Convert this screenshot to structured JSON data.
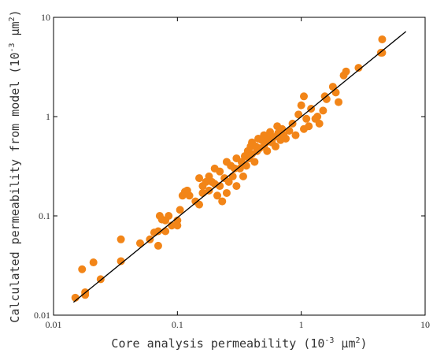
{
  "chart_data": {
    "type": "scatter",
    "title": "",
    "xlabel": "Core analysis permeability (10",
    "xlabel_exp": "-3",
    "xlabel_unit": " μm",
    "xlabel_unit_exp": "2",
    "xlabel_close": ")",
    "ylabel": "Calculated permeability from model (10",
    "ylabel_exp": "-3",
    "ylabel_unit": " μm",
    "ylabel_unit_exp": "2",
    "ylabel_close": ")",
    "x_scale": "log",
    "y_scale": "log",
    "xlim": [
      0.01,
      10
    ],
    "ylim": [
      0.01,
      10
    ],
    "x_ticks": [
      0.01,
      0.1,
      1,
      10
    ],
    "x_tick_labels": [
      "0.01",
      "0.1",
      "1",
      "10"
    ],
    "y_ticks": [
      0.01,
      0.1,
      1,
      10
    ],
    "y_tick_labels": [
      "0.01",
      "0.1",
      "1",
      "10"
    ],
    "grid": false,
    "point_color": "#F28518",
    "line_color": "#000000",
    "fit_line": {
      "x": [
        0.0145,
        7.0
      ],
      "y": [
        0.0135,
        7.2
      ]
    },
    "points": [
      [
        0.015,
        0.015
      ],
      [
        0.017,
        0.029
      ],
      [
        0.018,
        0.016
      ],
      [
        0.018,
        0.017
      ],
      [
        0.021,
        0.034
      ],
      [
        0.024,
        0.023
      ],
      [
        0.035,
        0.035
      ],
      [
        0.035,
        0.058
      ],
      [
        0.05,
        0.053
      ],
      [
        0.06,
        0.058
      ],
      [
        0.065,
        0.068
      ],
      [
        0.07,
        0.05
      ],
      [
        0.07,
        0.07
      ],
      [
        0.072,
        0.1
      ],
      [
        0.075,
        0.092
      ],
      [
        0.08,
        0.09
      ],
      [
        0.08,
        0.07
      ],
      [
        0.085,
        0.1
      ],
      [
        0.09,
        0.08
      ],
      [
        0.1,
        0.09
      ],
      [
        0.1,
        0.08
      ],
      [
        0.105,
        0.115
      ],
      [
        0.11,
        0.16
      ],
      [
        0.115,
        0.175
      ],
      [
        0.12,
        0.18
      ],
      [
        0.12,
        0.17
      ],
      [
        0.125,
        0.16
      ],
      [
        0.14,
        0.14
      ],
      [
        0.15,
        0.13
      ],
      [
        0.15,
        0.24
      ],
      [
        0.16,
        0.2
      ],
      [
        0.16,
        0.17
      ],
      [
        0.17,
        0.22
      ],
      [
        0.18,
        0.18
      ],
      [
        0.18,
        0.25
      ],
      [
        0.19,
        0.22
      ],
      [
        0.2,
        0.3
      ],
      [
        0.2,
        0.21
      ],
      [
        0.21,
        0.16
      ],
      [
        0.22,
        0.28
      ],
      [
        0.22,
        0.2
      ],
      [
        0.23,
        0.14
      ],
      [
        0.24,
        0.24
      ],
      [
        0.25,
        0.17
      ],
      [
        0.25,
        0.35
      ],
      [
        0.26,
        0.22
      ],
      [
        0.27,
        0.32
      ],
      [
        0.28,
        0.25
      ],
      [
        0.29,
        0.3
      ],
      [
        0.3,
        0.2
      ],
      [
        0.3,
        0.38
      ],
      [
        0.32,
        0.3
      ],
      [
        0.33,
        0.35
      ],
      [
        0.34,
        0.25
      ],
      [
        0.35,
        0.4
      ],
      [
        0.36,
        0.32
      ],
      [
        0.37,
        0.45
      ],
      [
        0.38,
        0.38
      ],
      [
        0.39,
        0.5
      ],
      [
        0.4,
        0.42
      ],
      [
        0.4,
        0.55
      ],
      [
        0.42,
        0.35
      ],
      [
        0.43,
        0.5
      ],
      [
        0.44,
        0.45
      ],
      [
        0.45,
        0.6
      ],
      [
        0.46,
        0.48
      ],
      [
        0.48,
        0.58
      ],
      [
        0.5,
        0.5
      ],
      [
        0.5,
        0.65
      ],
      [
        0.52,
        0.55
      ],
      [
        0.53,
        0.45
      ],
      [
        0.55,
        0.6
      ],
      [
        0.56,
        0.7
      ],
      [
        0.58,
        0.55
      ],
      [
        0.6,
        0.62
      ],
      [
        0.62,
        0.5
      ],
      [
        0.64,
        0.8
      ],
      [
        0.65,
        0.68
      ],
      [
        0.68,
        0.58
      ],
      [
        0.7,
        0.75
      ],
      [
        0.72,
        0.65
      ],
      [
        0.75,
        0.6
      ],
      [
        0.8,
        0.72
      ],
      [
        0.85,
        0.85
      ],
      [
        0.9,
        0.65
      ],
      [
        0.95,
        1.05
      ],
      [
        1.0,
        1.3
      ],
      [
        1.05,
        1.6
      ],
      [
        1.05,
        0.75
      ],
      [
        1.1,
        0.95
      ],
      [
        1.15,
        0.8
      ],
      [
        1.2,
        1.2
      ],
      [
        1.3,
        0.95
      ],
      [
        1.35,
        1.0
      ],
      [
        1.4,
        0.85
      ],
      [
        1.5,
        1.15
      ],
      [
        1.55,
        1.6
      ],
      [
        1.6,
        1.5
      ],
      [
        1.8,
        2.0
      ],
      [
        1.9,
        1.75
      ],
      [
        2.0,
        1.4
      ],
      [
        2.2,
        2.6
      ],
      [
        2.3,
        2.85
      ],
      [
        2.9,
        3.1
      ],
      [
        4.4,
        4.4
      ],
      [
        4.5,
        6.0
      ],
      [
        4.5,
        4.4
      ]
    ]
  }
}
